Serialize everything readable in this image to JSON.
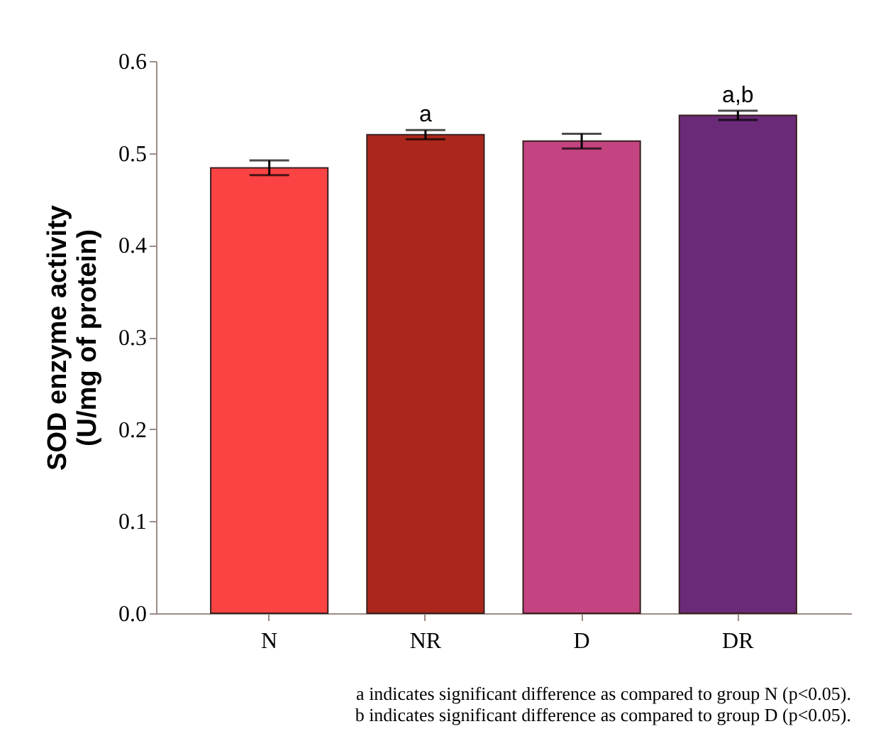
{
  "chart_data": {
    "type": "bar",
    "ylabel": "SOD enzyme activity\n(U/mg of protein)",
    "categories": [
      "N",
      "NR",
      "D",
      "DR"
    ],
    "values": [
      0.484,
      0.52,
      0.513,
      0.541
    ],
    "colors": [
      "#fc4343",
      "#ab271b",
      "#c34480",
      "#6a2a78"
    ],
    "errors": [
      0.008,
      0.005,
      0.008,
      0.005
    ],
    "ylim": [
      0,
      0.6
    ],
    "yticks": [
      {
        "value": 0,
        "label": "0.0"
      },
      {
        "value": 0.1,
        "label": "0.1"
      },
      {
        "value": 0.2,
        "label": "0.2"
      },
      {
        "value": 0.3,
        "label": "0.3"
      },
      {
        "value": 0.4,
        "label": "0.4"
      },
      {
        "value": 0.5,
        "label": "0.5"
      },
      {
        "value": 0.6,
        "label": "0.6"
      }
    ],
    "grid": false,
    "annotations": [
      {
        "text": "a",
        "x": "NR",
        "y": 0.53
      },
      {
        "text": "a,b",
        "x": "DR",
        "y": 0.551
      },
      "a indicates significant difference as compared to group N (p<0.05).",
      "b indicates significant difference as compared to group D (p<0.05)."
    ]
  }
}
